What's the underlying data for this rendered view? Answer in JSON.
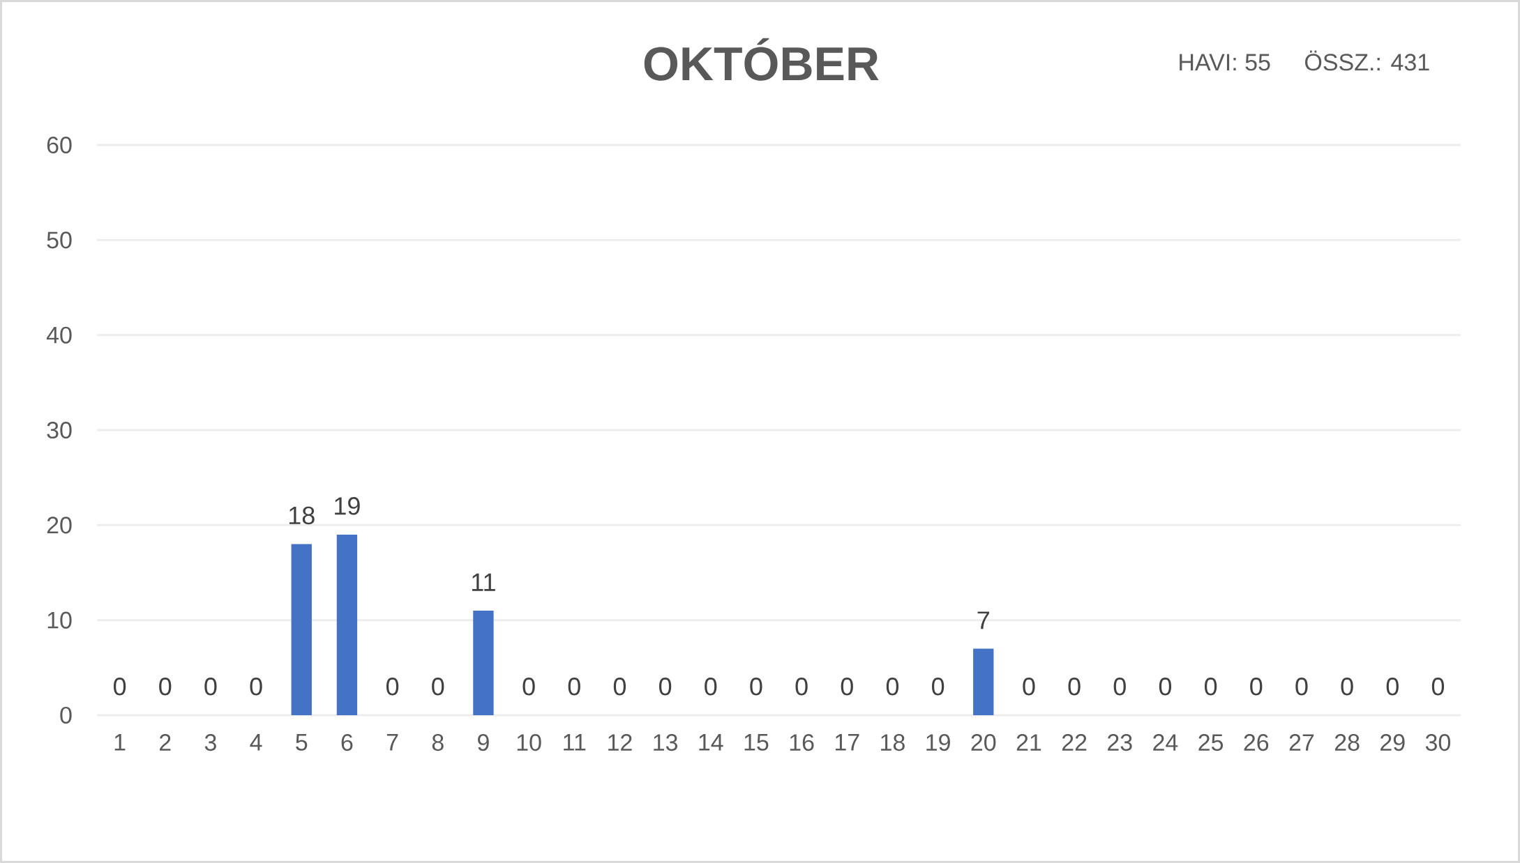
{
  "chart_data": {
    "type": "bar",
    "title": "OKTÓBER",
    "annotations": [
      "HAVI: 55",
      "ÖSSZ.: 431"
    ],
    "categories": [
      "1",
      "2",
      "3",
      "4",
      "5",
      "6",
      "7",
      "8",
      "9",
      "10",
      "11",
      "12",
      "13",
      "14",
      "15",
      "16",
      "17",
      "18",
      "19",
      "20",
      "21",
      "22",
      "23",
      "24",
      "25",
      "26",
      "27",
      "28",
      "29",
      "30"
    ],
    "values": [
      0,
      0,
      0,
      0,
      18,
      19,
      0,
      0,
      11,
      0,
      0,
      0,
      0,
      0,
      0,
      0,
      0,
      0,
      0,
      7,
      0,
      0,
      0,
      0,
      0,
      0,
      0,
      0,
      0,
      0
    ],
    "color": "#4472c4",
    "ylim": [
      0,
      60
    ],
    "yticks": [
      0,
      10,
      20,
      30,
      40,
      50,
      60
    ],
    "grid": "y",
    "data_labels": true
  }
}
